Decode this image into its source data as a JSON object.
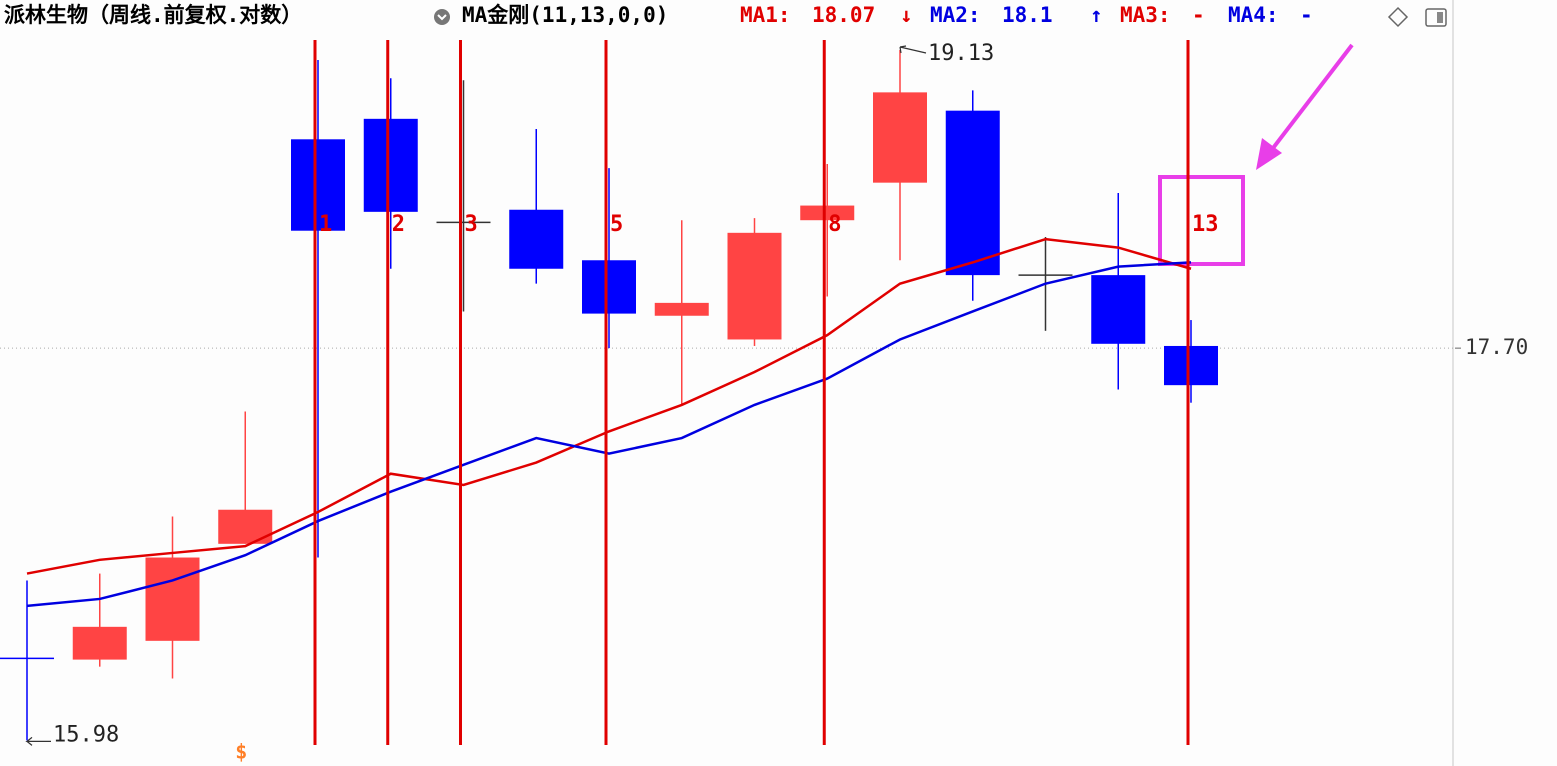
{
  "chart_data": {
    "type": "candlestick",
    "title": "派林生物（周线.前复权.对数）",
    "indicator": "MA金刚(11,13,0,0)",
    "log": true,
    "ylim": [
      15.94,
      19.2
    ],
    "yticks": [
      {
        "value": 17.7,
        "label": "17.70"
      }
    ],
    "grid": "dotted",
    "up_color": "#ff4444",
    "down_color": "#0000ff",
    "flat_color": "#333333",
    "open": [
      16.33,
      16.32,
      16.4,
      16.82,
      18.69,
      18.79,
      18.29,
      18.35,
      18.11,
      17.85,
      17.74,
      18.3,
      18.48,
      18.83,
      18.04,
      18.04,
      17.71
    ],
    "high": [
      16.66,
      16.69,
      16.94,
      17.41,
      19.08,
      18.99,
      18.98,
      18.74,
      18.55,
      18.3,
      18.31,
      18.57,
      19.13,
      18.93,
      18.22,
      18.43,
      17.83
    ],
    "low": [
      15.98,
      16.29,
      16.24,
      16.82,
      16.76,
      18.07,
      17.87,
      18.0,
      17.7,
      17.44,
      17.71,
      17.94,
      18.11,
      17.92,
      17.78,
      17.51,
      17.45
    ],
    "close": [
      16.32,
      16.46,
      16.76,
      16.97,
      18.25,
      18.34,
      18.29,
      18.07,
      17.86,
      17.91,
      18.24,
      18.37,
      18.92,
      18.04,
      18.04,
      17.72,
      17.53
    ],
    "series": [
      {
        "name": "MA1:",
        "color": "#e00000",
        "arrow": "↓",
        "values": [
          16.69,
          16.75,
          16.78,
          16.81,
          16.96,
          17.13,
          17.08,
          17.18,
          17.32,
          17.44,
          17.59,
          17.76,
          18.0,
          18.1,
          18.21,
          18.17,
          18.07
        ]
      },
      {
        "name": "MA2:",
        "color": "#0000e0",
        "arrow": "↑",
        "values": [
          16.55,
          16.58,
          16.66,
          16.77,
          16.92,
          17.05,
          17.17,
          17.29,
          17.22,
          17.29,
          17.44,
          17.56,
          17.74,
          17.87,
          18.0,
          18.08,
          18.1
        ]
      }
    ],
    "legend_extra": [
      {
        "name": "MA3:",
        "color": "#e00000",
        "value_label": "-"
      },
      {
        "name": "MA4:",
        "color": "#0000e0",
        "value_label": "-"
      }
    ],
    "marker_color": "#e00000",
    "markers": [
      {
        "index": 4,
        "label": "1"
      },
      {
        "index": 5,
        "label": "2"
      },
      {
        "index": 6,
        "label": "3"
      },
      {
        "index": 8,
        "label": "5"
      },
      {
        "index": 11,
        "label": "8"
      },
      {
        "index": 16,
        "label": "13"
      }
    ],
    "signal": {
      "index": 3,
      "label": "$",
      "color": "#ff7f27"
    }
  }
}
